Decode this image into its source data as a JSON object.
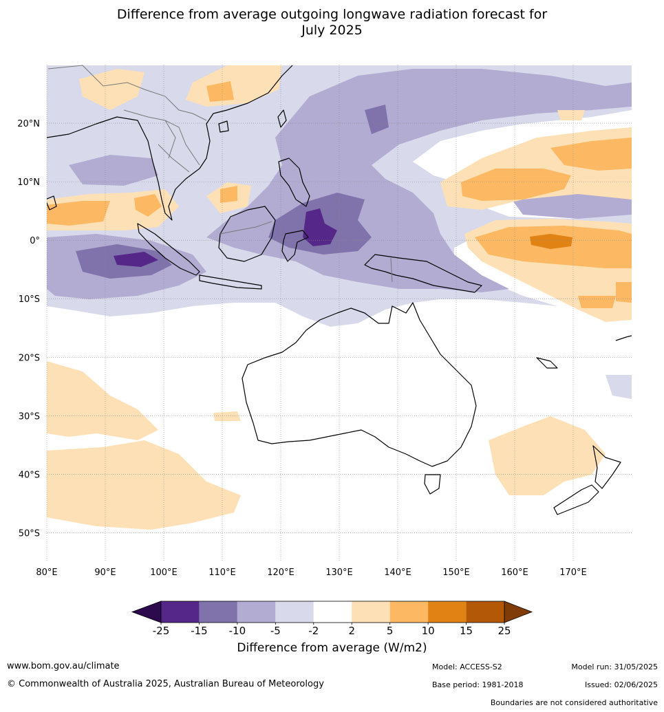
{
  "title_line1": "Difference from average outgoing longwave radiation forecast for",
  "title_line2": "July 2025",
  "map": {
    "lon_ticks": [
      "80°E",
      "90°E",
      "100°E",
      "110°E",
      "120°E",
      "130°E",
      "140°E",
      "150°E",
      "160°E",
      "170°E"
    ],
    "lat_ticks": [
      "20°N",
      "10°N",
      "0°",
      "10°S",
      "20°S",
      "30°S",
      "40°S",
      "50°S"
    ],
    "lon_range": [
      80,
      180
    ],
    "lat_range": [
      -55,
      30
    ]
  },
  "colorbar": {
    "title": "Difference from average (W/m2)",
    "labels": [
      "-25",
      "-15",
      "-10",
      "-5",
      "-2",
      "2",
      "5",
      "10",
      "15",
      "25"
    ],
    "colors": {
      "below": "#2d0a4e",
      "bins": [
        "#542788",
        "#8073ac",
        "#b2abd2",
        "#d8daeb",
        "#ffffff",
        "#fee0b6",
        "#fdb863",
        "#e08214",
        "#b35806"
      ],
      "above": "#7f3b08"
    }
  },
  "footer": {
    "website": "www.bom.gov.au/climate",
    "copyright": "© Commonwealth of Australia 2025, Australian Bureau of Meteorology",
    "model": "Model: ACCESS-S2",
    "model_run": "Model run: 31/05/2025",
    "base_period": "Base period: 1981-2018",
    "issued": "Issued: 02/06/2025",
    "disclaimer": "Boundaries are not considered authoritative"
  }
}
